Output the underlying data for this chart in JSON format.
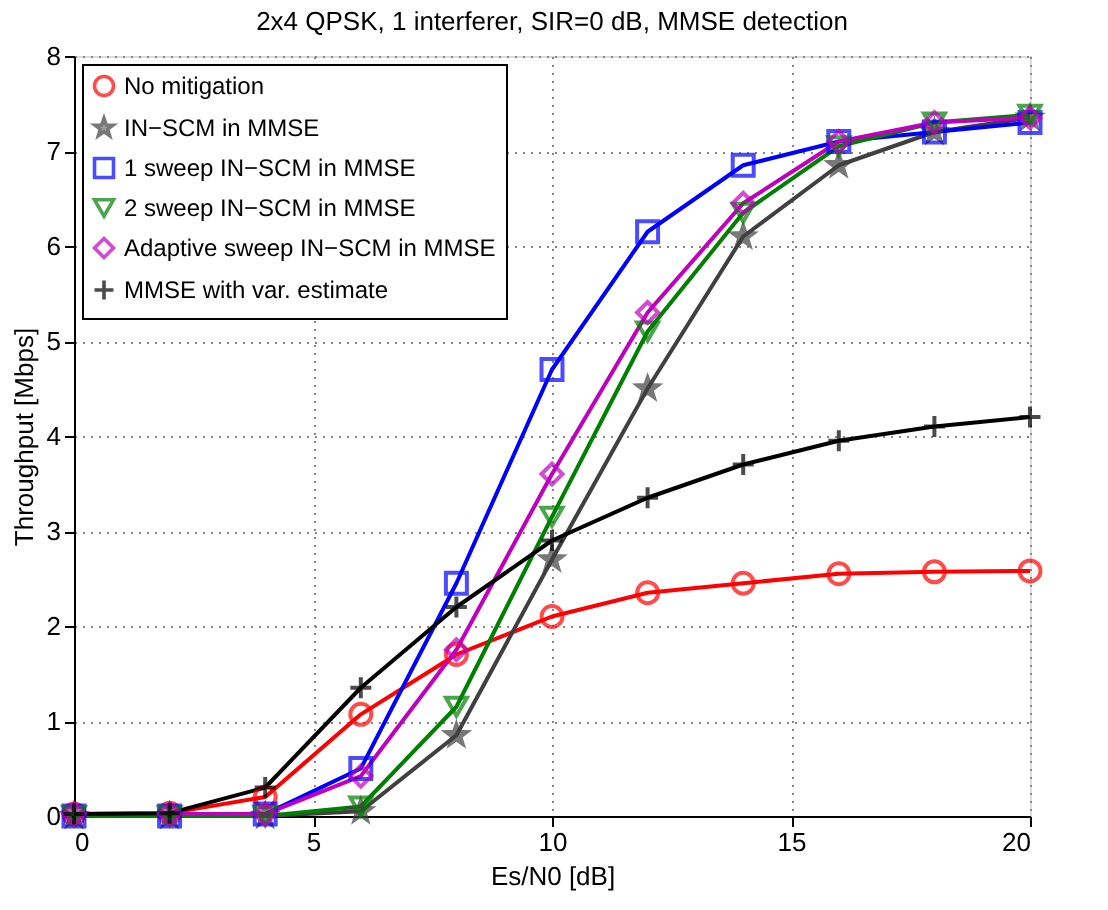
{
  "chart_data": {
    "type": "line",
    "title": "2x4 QPSK, 1 interferer, SIR=0 dB, MMSE detection",
    "xlabel": "Es/N0 [dB]",
    "ylabel": "Throughput [Mbps]",
    "x": [
      0,
      2,
      4,
      6,
      8,
      10,
      12,
      14,
      16,
      18,
      20
    ],
    "series": [
      {
        "name": "No mitigation",
        "color": "#ff0000",
        "marker": "circle",
        "values": [
          0.02,
          0.03,
          0.2,
          1.07,
          1.7,
          2.1,
          2.35,
          2.45,
          2.55,
          2.57,
          2.58
        ]
      },
      {
        "name": "IN−SCM in MMSE",
        "color": "#404040",
        "marker": "star",
        "values": [
          0,
          0,
          0,
          0.05,
          0.85,
          2.7,
          4.5,
          6.1,
          6.85,
          7.2,
          7.35
        ]
      },
      {
        "name": "1 sweep IN−SCM in MMSE",
        "color": "#0000ff",
        "marker": "square",
        "values": [
          0,
          0,
          0.02,
          0.5,
          2.45,
          4.7,
          6.15,
          6.85,
          7.1,
          7.2,
          7.3
        ]
      },
      {
        "name": "2 sweep IN−SCM in MMSE",
        "color": "#008000",
        "marker": "triangle",
        "values": [
          0,
          0,
          0,
          0.1,
          1.15,
          3.15,
          5.1,
          6.35,
          7.05,
          7.3,
          7.38
        ]
      },
      {
        "name": "Adaptive sweep IN−SCM in MMSE",
        "color": "#bf00bf",
        "marker": "diamond",
        "values": [
          0.02,
          0.02,
          0.02,
          0.42,
          1.75,
          3.6,
          5.3,
          6.45,
          7.1,
          7.3,
          7.35
        ]
      },
      {
        "name": "MMSE with var. estimate",
        "color": "#000000",
        "marker": "cross",
        "values": [
          0.02,
          0.03,
          0.3,
          1.35,
          2.2,
          2.9,
          3.35,
          3.7,
          3.95,
          4.1,
          4.2
        ]
      }
    ],
    "xlim": [
      0,
      20
    ],
    "ylim": [
      0,
      8
    ],
    "xticks": [
      0,
      5,
      10,
      15,
      20
    ],
    "yticks": [
      0,
      1,
      2,
      3,
      4,
      5,
      6,
      7,
      8
    ],
    "grid": true,
    "legend": "top left",
    "line_style": "solid"
  }
}
